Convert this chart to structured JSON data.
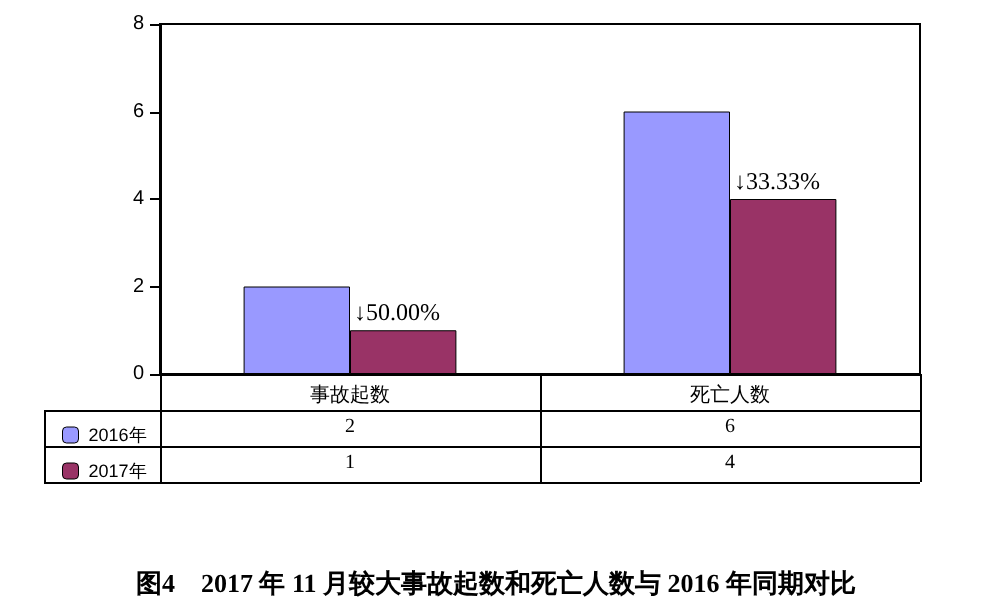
{
  "chart_data": {
    "type": "bar",
    "title": "图4　2017 年 11 月较大事故起数和死亡人数与 2016 年同期对比",
    "categories": [
      "事故起数",
      "死亡人数"
    ],
    "series": [
      {
        "name": "2016年",
        "color": "#9999ff",
        "values": [
          2,
          6
        ]
      },
      {
        "name": "2017年",
        "color": "#993366",
        "values": [
          1,
          4
        ]
      }
    ],
    "ylim": [
      0,
      8
    ],
    "yticks": [
      0,
      2,
      4,
      6,
      8
    ],
    "grid": false,
    "legend": "bottom left",
    "data_labels": true,
    "annotations": [
      {
        "text": "↓50.00%",
        "x": "事故起数",
        "y": 1
      },
      {
        "text": "↓33.33%",
        "x": "死亡人数",
        "y": 4
      }
    ]
  }
}
